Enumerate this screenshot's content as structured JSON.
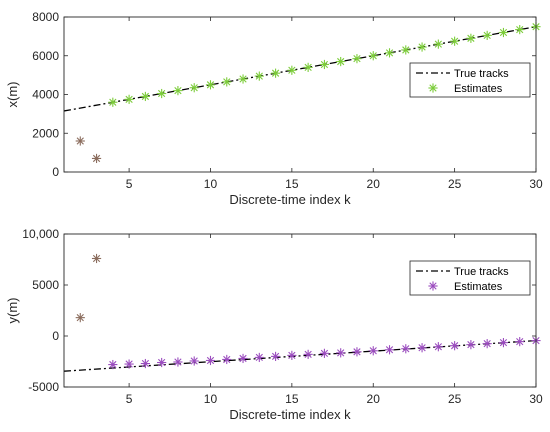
{
  "chart_data": [
    {
      "type": "line",
      "xlabel": "Discrete-time index k",
      "ylabel": "x(m)",
      "xlim": [
        1,
        30
      ],
      "ylim": [
        0,
        8000
      ],
      "xticks": [
        5,
        10,
        15,
        20,
        25,
        30
      ],
      "yticks": [
        0,
        2000,
        4000,
        6000,
        8000
      ],
      "ytick_labels": [
        "0",
        "2000",
        "4000",
        "6000",
        "8000"
      ],
      "legend_position": "right",
      "legend": [
        {
          "label": "True tracks",
          "style": "dash-dot line"
        },
        {
          "label": "Estimates",
          "style": "asterisk markers"
        }
      ],
      "true_tracks": {
        "x": [
          1,
          30
        ],
        "y": [
          3150,
          7500
        ]
      },
      "estimates": {
        "x": [
          4,
          5,
          6,
          7,
          8,
          9,
          10,
          11,
          12,
          13,
          14,
          15,
          16,
          17,
          18,
          19,
          20,
          21,
          22,
          23,
          24,
          25,
          26,
          27,
          28,
          29,
          30
        ],
        "y": [
          3600,
          3750,
          3900,
          4050,
          4200,
          4350,
          4500,
          4650,
          4800,
          4950,
          5100,
          5250,
          5400,
          5550,
          5700,
          5850,
          6000,
          6150,
          6300,
          6450,
          6600,
          6750,
          6900,
          7050,
          7200,
          7350,
          7500
        ]
      },
      "initial_points": {
        "x": [
          2,
          3
        ],
        "y": [
          1600,
          700
        ]
      },
      "colors": {
        "estimates": "#7ccc3a",
        "initial": "#8b6d5e",
        "line": "#000000"
      }
    },
    {
      "type": "line",
      "xlabel": "Discrete-time index k",
      "ylabel": "y(m)",
      "xlim": [
        1,
        30
      ],
      "ylim": [
        -5000,
        10000
      ],
      "xticks": [
        5,
        10,
        15,
        20,
        25,
        30
      ],
      "yticks": [
        -5000,
        0,
        5000,
        10000
      ],
      "ytick_labels": [
        "-5000",
        "0",
        "5000",
        "10,000"
      ],
      "legend_position": "right",
      "legend": [
        {
          "label": "True tracks",
          "style": "dash-dot line"
        },
        {
          "label": "Estimates",
          "style": "asterisk markers"
        }
      ],
      "true_tracks": {
        "x": [
          1,
          30
        ],
        "y": [
          -3450,
          -450
        ]
      },
      "estimates": {
        "x": [
          4,
          5,
          6,
          7,
          8,
          9,
          10,
          11,
          12,
          13,
          14,
          15,
          16,
          17,
          18,
          19,
          20,
          21,
          22,
          23,
          24,
          25,
          26,
          27,
          28,
          29,
          30
        ],
        "y": [
          -2800,
          -2750,
          -2700,
          -2600,
          -2550,
          -2450,
          -2400,
          -2300,
          -2200,
          -2100,
          -2000,
          -1900,
          -1800,
          -1700,
          -1650,
          -1550,
          -1450,
          -1350,
          -1250,
          -1150,
          -1050,
          -950,
          -850,
          -750,
          -650,
          -550,
          -450
        ]
      },
      "initial_points": {
        "x": [
          2,
          3
        ],
        "y": [
          1800,
          7600
        ]
      },
      "colors": {
        "estimates": "#9b4dbf",
        "initial": "#8b6d5e",
        "line": "#000000"
      }
    }
  ]
}
